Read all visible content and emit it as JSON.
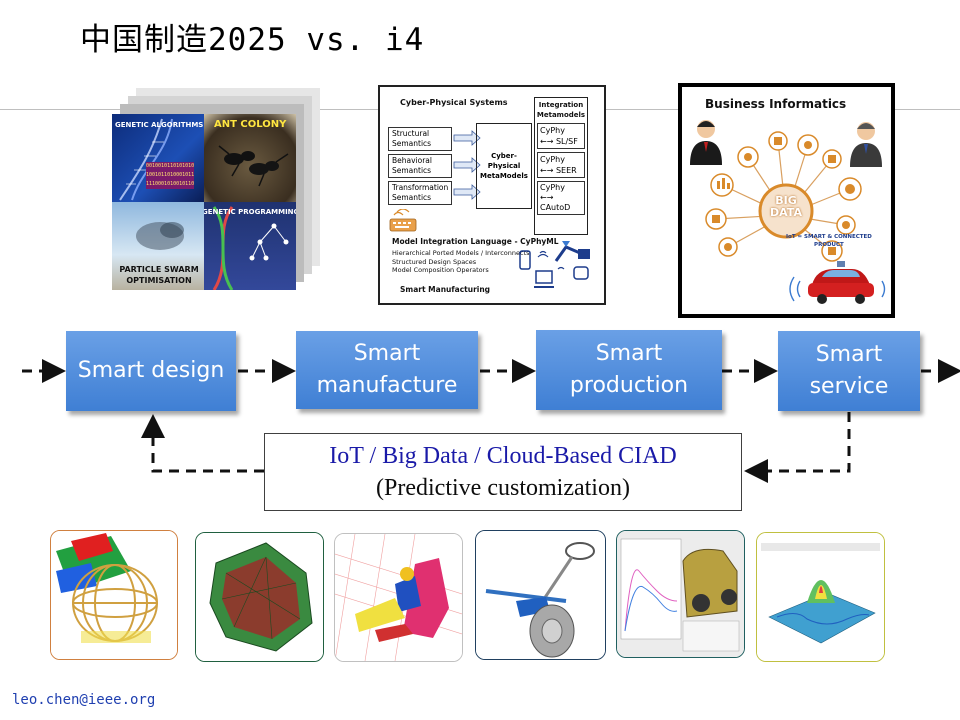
{
  "slide": {
    "title": "中国制造2025 vs. i4",
    "footer_email": "leo.chen@ieee.org"
  },
  "evolutionary_panel": {
    "genetic_algorithms": "GENETIC ALGORITHMS",
    "ant_colony": "ANT COLONY",
    "genetic_programming": "GENETIC PROGRAMMING",
    "particle_swarm_line1": "PARTICLE SWARM",
    "particle_swarm_line2": "OPTIMISATION",
    "binary_rows": [
      "0010010110101010",
      "1001011010001011",
      "1110001010010110"
    ]
  },
  "cps_panel": {
    "title": "Cyber-Physical Systems",
    "semantics": [
      {
        "line1": "Structural",
        "line2": "Semantics"
      },
      {
        "line1": "Behavioral",
        "line2": "Semantics"
      },
      {
        "line1": "Transformation",
        "line2": "Semantics"
      }
    ],
    "center_line1": "Cyber-",
    "center_line2": "Physical",
    "center_line3": "MetaModels",
    "metamodels_title_line1": "Integration",
    "metamodels_title_line2": "Metamodels",
    "metamodels": [
      {
        "line1": "CyPhy",
        "line2": "←→ SL/SF"
      },
      {
        "line1": "CyPhy",
        "line2": "←→ SEER"
      },
      {
        "line1": "CyPhy",
        "line2": "←→",
        "line3": "CAutoD"
      }
    ],
    "language_title": "Model Integration Language - CyPhyML",
    "language_items": [
      "Hierarchical Ported Models / Interconnects",
      "Structured Design Spaces",
      "Model Composition Operators"
    ],
    "footer": "Smart Manufacturing"
  },
  "bi_panel": {
    "title": "Business Informatics",
    "center_line1": "BIG",
    "center_line2": "DATA",
    "tagline_line1": "IoT = SMART & CONNECTED",
    "tagline_line2": "PRODUCT"
  },
  "flow": {
    "steps": [
      {
        "line1": "Smart design",
        "line2": ""
      },
      {
        "line1": "Smart",
        "line2": "manufacture"
      },
      {
        "line1": "Smart",
        "line2": "production"
      },
      {
        "line1": "Smart",
        "line2": "service"
      }
    ],
    "ciad_line1": "IoT / Big Data / Cloud-Based CIAD",
    "ciad_line2": "(Predictive customization)"
  },
  "colors": {
    "flow_box": "#4a88d8",
    "ciad_text": "#1a1aa8",
    "footer_text": "#1f3fb0"
  }
}
